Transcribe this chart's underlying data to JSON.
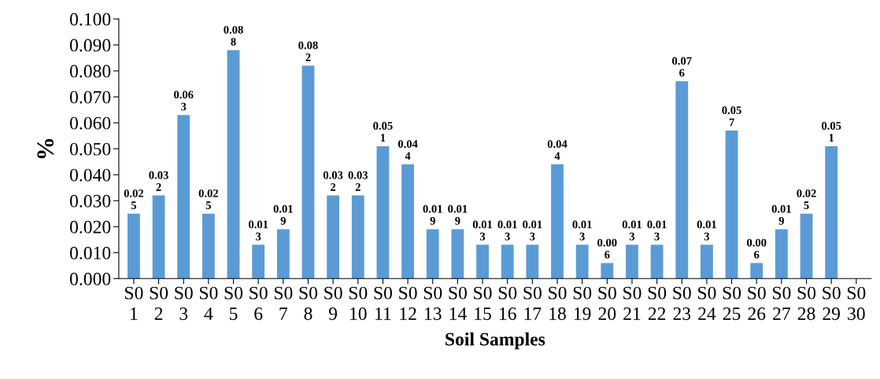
{
  "chart_data": {
    "type": "bar",
    "xlabel": "Soil Samples",
    "ylabel": "%",
    "categories": [
      "S0\n1",
      "S0\n2",
      "S0\n3",
      "S0\n4",
      "S0\n5",
      "S0\n6",
      "S0\n7",
      "S0\n8",
      "S0\n9",
      "S0\n10",
      "S0\n11",
      "S0\n12",
      "S0\n13",
      "S0\n14",
      "S0\n15",
      "S0\n16",
      "S0\n17",
      "S0\n18",
      "S0\n19",
      "S0\n20",
      "S0\n21",
      "S0\n22",
      "S0\n23",
      "S0\n24",
      "S0\n25",
      "S0\n26",
      "S0\n27",
      "S0\n28",
      "S0\n29",
      "S0\n30"
    ],
    "values": [
      0.025,
      0.032,
      0.063,
      0.025,
      0.088,
      0.013,
      0.019,
      0.082,
      0.032,
      0.032,
      0.051,
      0.044,
      0.019,
      0.019,
      0.013,
      0.013,
      0.013,
      0.044,
      0.013,
      0.006,
      0.013,
      0.013,
      0.076,
      0.013,
      0.057,
      0.006,
      0.019,
      0.025,
      0.051,
      null
    ],
    "color": "#5b9bd5",
    "data_labels": true,
    "ylim": [
      0,
      0.1
    ],
    "yticks": [
      {
        "value": 0,
        "label": "0.000"
      },
      {
        "value": 0.01,
        "label": "0.010"
      },
      {
        "value": 0.02,
        "label": "0.020"
      },
      {
        "value": 0.03,
        "label": "0.030"
      },
      {
        "value": 0.04,
        "label": "0.040"
      },
      {
        "value": 0.05,
        "label": "0.050"
      },
      {
        "value": 0.06,
        "label": "0.060"
      },
      {
        "value": 0.07,
        "label": "0.070"
      },
      {
        "value": 0.08,
        "label": "0.080"
      },
      {
        "value": 0.09,
        "label": "0.090"
      },
      {
        "value": 0.1,
        "label": "0.100"
      }
    ],
    "grid": false
  }
}
